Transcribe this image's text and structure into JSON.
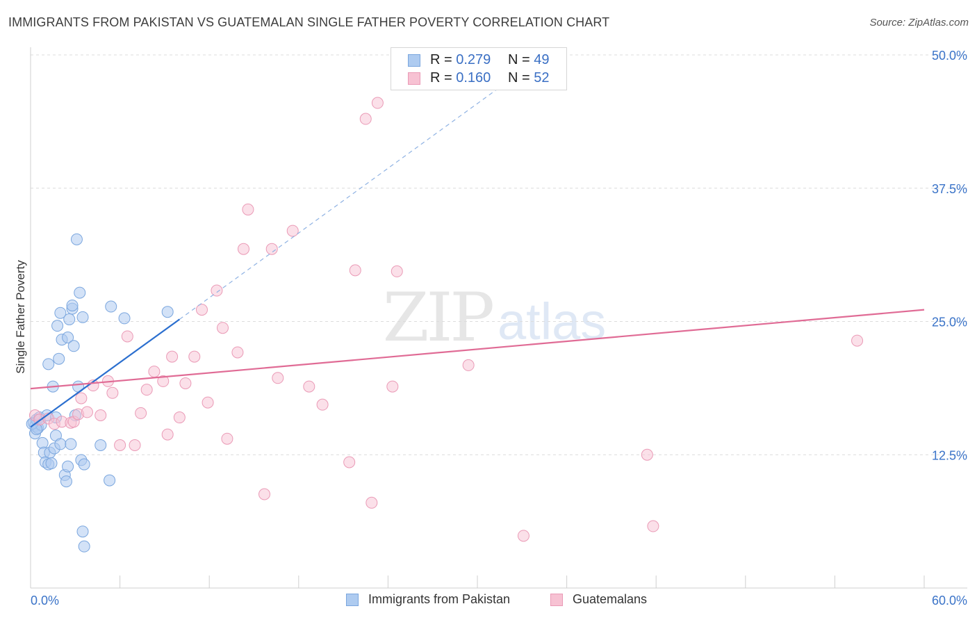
{
  "header": {
    "title": "IMMIGRANTS FROM PAKISTAN VS GUATEMALAN SINGLE FATHER POVERTY CORRELATION CHART",
    "source": "Source: ZipAtlas.com"
  },
  "watermark": {
    "zip": "ZIP",
    "atlas": "atlas"
  },
  "legend_top": {
    "rows": [
      {
        "r_label": "R = ",
        "r_value": "0.279",
        "n_label": "N = ",
        "n_value": "49",
        "color": "#8bb4e8"
      },
      {
        "r_label": "R = ",
        "r_value": "0.160",
        "n_label": "N = ",
        "n_value": "52",
        "color": "#f2a7c0"
      }
    ]
  },
  "colors": {
    "blue_fill": "#aecbf0",
    "blue_stroke": "#7aa6de",
    "blue_line": "#2b6fcf",
    "pink_fill": "#f7c2d3",
    "pink_stroke": "#ea9ab6",
    "pink_line": "#e06b95",
    "axis_text": "#3a73c8",
    "grid": "#dcdcdc"
  },
  "chart_data": {
    "type": "scatter",
    "title": "IMMIGRANTS FROM PAKISTAN VS GUATEMALAN SINGLE FATHER POVERTY CORRELATION CHART",
    "xlabel": "",
    "ylabel": "Single Father Poverty",
    "xlim": [
      0,
      60
    ],
    "ylim": [
      0,
      50
    ],
    "x_tick_labels": [
      "0.0%",
      "60.0%"
    ],
    "y_ticks": [
      12.5,
      25.0,
      37.5,
      50.0
    ],
    "y_tick_labels": [
      "12.5%",
      "25.0%",
      "37.5%",
      "50.0%"
    ],
    "grid": true,
    "series": [
      {
        "name": "Immigrants from Pakistan",
        "color": "#8bb4e8",
        "trend": {
          "x": [
            0,
            10
          ],
          "y": [
            15.1,
            25.2
          ],
          "dashed_to": [
            35,
            50.5
          ]
        },
        "points": [
          [
            0.2,
            15.5
          ],
          [
            0.3,
            15.2
          ],
          [
            0.3,
            14.5
          ],
          [
            0.4,
            15.8
          ],
          [
            0.5,
            15.0
          ],
          [
            0.6,
            16.0
          ],
          [
            0.7,
            15.3
          ],
          [
            0.8,
            13.6
          ],
          [
            0.9,
            12.7
          ],
          [
            1.0,
            11.8
          ],
          [
            1.1,
            16.2
          ],
          [
            1.2,
            11.6
          ],
          [
            1.2,
            21.0
          ],
          [
            1.3,
            12.7
          ],
          [
            1.4,
            11.7
          ],
          [
            1.5,
            18.9
          ],
          [
            1.6,
            13.1
          ],
          [
            1.7,
            16.0
          ],
          [
            1.7,
            14.3
          ],
          [
            1.8,
            24.6
          ],
          [
            1.9,
            21.5
          ],
          [
            2.0,
            25.8
          ],
          [
            2.0,
            13.5
          ],
          [
            2.1,
            23.3
          ],
          [
            2.3,
            10.6
          ],
          [
            2.4,
            10.0
          ],
          [
            2.5,
            11.4
          ],
          [
            2.5,
            23.5
          ],
          [
            2.6,
            25.2
          ],
          [
            2.7,
            13.5
          ],
          [
            2.8,
            26.2
          ],
          [
            2.8,
            26.5
          ],
          [
            2.9,
            22.7
          ],
          [
            3.0,
            16.2
          ],
          [
            3.1,
            32.7
          ],
          [
            3.2,
            18.9
          ],
          [
            3.3,
            27.7
          ],
          [
            3.4,
            12.0
          ],
          [
            3.5,
            25.4
          ],
          [
            3.5,
            5.3
          ],
          [
            3.6,
            11.6
          ],
          [
            3.6,
            3.9
          ],
          [
            4.7,
            13.4
          ],
          [
            5.3,
            10.1
          ],
          [
            5.4,
            26.4
          ],
          [
            6.3,
            25.3
          ],
          [
            9.2,
            25.9
          ],
          [
            0.1,
            15.4
          ],
          [
            0.4,
            14.9
          ]
        ]
      },
      {
        "name": "Guatemalans",
        "color": "#f2a7c0",
        "trend": {
          "x": [
            0,
            60
          ],
          "y": [
            18.7,
            26.1
          ]
        },
        "points": [
          [
            0.3,
            16.2
          ],
          [
            0.6,
            15.8
          ],
          [
            1.2,
            15.9
          ],
          [
            1.6,
            15.4
          ],
          [
            2.1,
            15.6
          ],
          [
            2.7,
            15.5
          ],
          [
            2.9,
            15.6
          ],
          [
            3.2,
            16.3
          ],
          [
            3.4,
            17.8
          ],
          [
            3.8,
            16.5
          ],
          [
            4.2,
            19.0
          ],
          [
            4.7,
            16.2
          ],
          [
            5.2,
            19.4
          ],
          [
            5.5,
            18.3
          ],
          [
            6.0,
            13.4
          ],
          [
            6.5,
            23.6
          ],
          [
            7.0,
            13.4
          ],
          [
            7.4,
            16.4
          ],
          [
            7.8,
            18.6
          ],
          [
            8.3,
            20.3
          ],
          [
            8.9,
            19.4
          ],
          [
            9.2,
            14.4
          ],
          [
            9.5,
            21.7
          ],
          [
            10.0,
            16.0
          ],
          [
            10.4,
            19.2
          ],
          [
            11.0,
            21.7
          ],
          [
            11.5,
            26.1
          ],
          [
            11.9,
            17.4
          ],
          [
            12.5,
            27.9
          ],
          [
            12.9,
            24.4
          ],
          [
            13.2,
            14.0
          ],
          [
            13.9,
            22.1
          ],
          [
            14.3,
            31.8
          ],
          [
            14.6,
            35.5
          ],
          [
            15.7,
            8.8
          ],
          [
            16.2,
            31.8
          ],
          [
            16.6,
            19.7
          ],
          [
            17.6,
            33.5
          ],
          [
            18.7,
            18.9
          ],
          [
            19.6,
            17.2
          ],
          [
            21.4,
            11.8
          ],
          [
            21.8,
            29.8
          ],
          [
            22.9,
            8.0
          ],
          [
            22.5,
            44.0
          ],
          [
            23.3,
            45.5
          ],
          [
            24.3,
            18.9
          ],
          [
            24.6,
            29.7
          ],
          [
            29.4,
            20.9
          ],
          [
            33.1,
            4.9
          ],
          [
            41.4,
            12.5
          ],
          [
            41.8,
            5.8
          ],
          [
            55.5,
            23.2
          ]
        ]
      }
    ]
  },
  "legend_bottom": {
    "items": [
      {
        "label": "Immigrants from Pakistan",
        "color": "#8bb4e8"
      },
      {
        "label": "Guatemalans",
        "color": "#f2a7c0"
      }
    ]
  }
}
